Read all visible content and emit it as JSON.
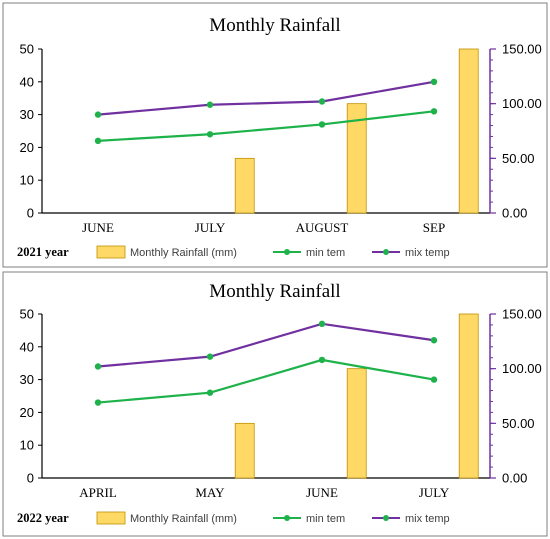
{
  "colors": {
    "rainfall": "#ffd966",
    "rainfall_edge": "#bf9000",
    "min_temp": "#1db24a",
    "max_temp": "#7030a0",
    "left_axis": "#000000",
    "right_axis": "#7030a0"
  },
  "chart_data": [
    {
      "type": "bar+line",
      "title": "Monthly Rainfall",
      "year_label": "2021 year",
      "categories": [
        "JUNE",
        "JULY",
        "AUGUST",
        "SEP"
      ],
      "series": [
        {
          "name": "Monthly Rainfall (mm)",
          "kind": "bar",
          "axis": "right",
          "values": [
            0,
            50,
            100,
            150
          ]
        },
        {
          "name": "min tem",
          "kind": "line",
          "axis": "left",
          "values": [
            22,
            24,
            27,
            31
          ]
        },
        {
          "name": "mix temp",
          "kind": "line",
          "axis": "left",
          "values": [
            30,
            33,
            34,
            40
          ]
        }
      ],
      "ylim_left": [
        0,
        50
      ],
      "yticks_left": [
        "0",
        "10",
        "20",
        "30",
        "40",
        "50"
      ],
      "ylim_right": [
        0,
        150
      ],
      "yticks_right": [
        "0.00",
        "50.00",
        "100.00",
        "150.00"
      ],
      "grid": false,
      "legend_position": "bottom"
    },
    {
      "type": "bar+line",
      "title": "Monthly Rainfall",
      "year_label": "2022 year",
      "categories": [
        "APRIL",
        "MAY",
        "JUNE",
        "JULY"
      ],
      "series": [
        {
          "name": "Monthly Rainfall (mm)",
          "kind": "bar",
          "axis": "right",
          "values": [
            0,
            50,
            100,
            150
          ]
        },
        {
          "name": "min tem",
          "kind": "line",
          "axis": "left",
          "values": [
            23,
            26,
            36,
            30
          ]
        },
        {
          "name": "mix temp",
          "kind": "line",
          "axis": "left",
          "values": [
            34,
            37,
            47,
            42
          ]
        }
      ],
      "ylim_left": [
        0,
        50
      ],
      "yticks_left": [
        "0",
        "10",
        "20",
        "30",
        "40",
        "50"
      ],
      "ylim_right": [
        0,
        150
      ],
      "yticks_right": [
        "0.00",
        "50.00",
        "100.00",
        "150.00"
      ],
      "grid": false,
      "legend_position": "bottom"
    }
  ]
}
